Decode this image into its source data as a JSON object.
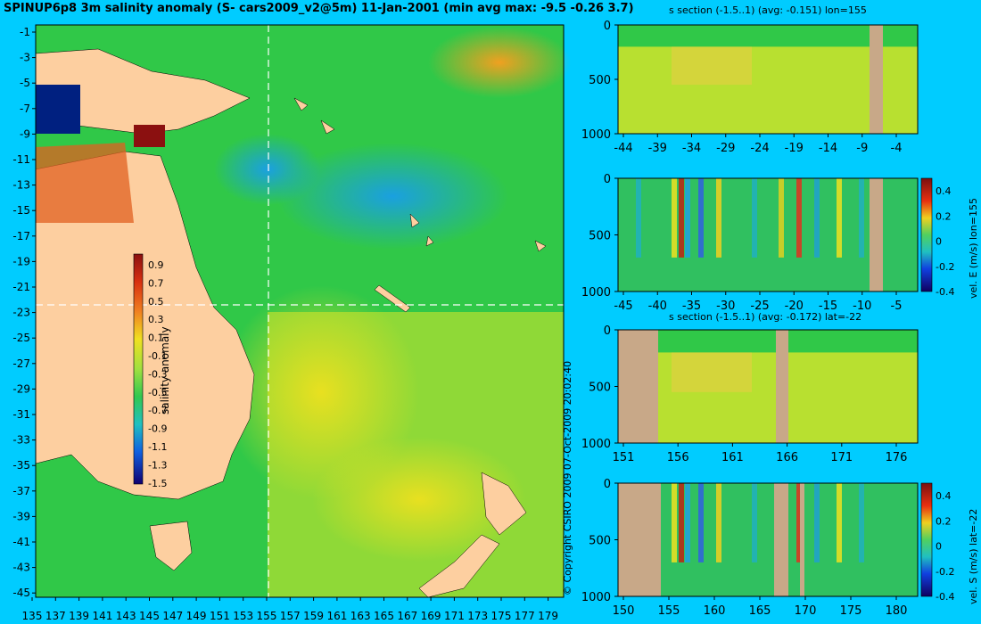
{
  "map": {
    "title": "SPINUP6p8 3m salinity anomaly (S- cars2009_v2@5m) 11-Jan-2001 (min avg max: -9.5 -0.26 3.7)",
    "yticks": [
      "-1",
      "-3",
      "-5",
      "-7",
      "-9",
      "-11",
      "-13",
      "-15",
      "-17",
      "-19",
      "-21",
      "-23",
      "-25",
      "-27",
      "-29",
      "-31",
      "-33",
      "-35",
      "-37",
      "-39",
      "-41",
      "-43",
      "-45"
    ],
    "xticks": [
      "135",
      "137",
      "139",
      "141",
      "143",
      "145",
      "147",
      "149",
      "151",
      "153",
      "155",
      "157",
      "159",
      "161",
      "163",
      "165",
      "167",
      "169",
      "171",
      "173",
      "175",
      "177",
      "179"
    ],
    "colorbar_label": "salinity anomaly",
    "colorbar_ticks": [
      "0.9",
      "0.7",
      "0.5",
      "0.3",
      "0.1",
      "-0.1",
      "-0.3",
      "-0.5",
      "-0.7",
      "-0.9",
      "-1.1",
      "-1.3",
      "-1.5"
    ],
    "copyright": "© Copyright CSIRO 2009   07-Oct-2009 20:02:40",
    "colors": {
      "land": "#fdcfa0",
      "ocean_mid": "#22cc44",
      "positive": "#e8e020",
      "cold": "#1aa0e0"
    }
  },
  "chart_data": [
    {
      "type": "heatmap",
      "title": "s section (-1.5..1) (avg: -0.151) lon=155",
      "x_tick_labels": [
        "-44",
        "-39",
        "-34",
        "-29",
        "-24",
        "-19",
        "-14",
        "-9",
        "-4"
      ],
      "y_tick_labels": [
        "0",
        "500",
        "1000"
      ],
      "ylim": [
        1050,
        0
      ],
      "xlim": [
        -45,
        -1
      ]
    },
    {
      "type": "heatmap",
      "title": "",
      "x_tick_labels": [
        "-45",
        "-40",
        "-35",
        "-30",
        "-25",
        "-20",
        "-15",
        "-10",
        "-5"
      ],
      "y_tick_labels": [
        "0",
        "500",
        "1000"
      ],
      "colorbar_label": "vel. E (m/s) lon=155",
      "colorbar_ticks": [
        "0.4",
        "0.2",
        "0",
        "-0.2",
        "-0.4"
      ],
      "xlim": [
        -45,
        -1
      ]
    },
    {
      "type": "heatmap",
      "title": "s section (-1.5..1) (avg: -0.172) lat=-22",
      "x_tick_labels": [
        "151",
        "156",
        "161",
        "166",
        "171",
        "176"
      ],
      "y_tick_labels": [
        "0",
        "500",
        "1000"
      ],
      "xlim": [
        150,
        180
      ]
    },
    {
      "type": "heatmap",
      "title": "",
      "x_tick_labels": [
        "150",
        "155",
        "160",
        "165",
        "170",
        "175",
        "180"
      ],
      "y_tick_labels": [
        "0",
        "500",
        "1000"
      ],
      "colorbar_label": "vel. S (m/s) lat=-22",
      "colorbar_ticks": [
        "0.4",
        "0.2",
        "0",
        "-0.2",
        "-0.4"
      ],
      "xlim": [
        150,
        180
      ]
    }
  ]
}
